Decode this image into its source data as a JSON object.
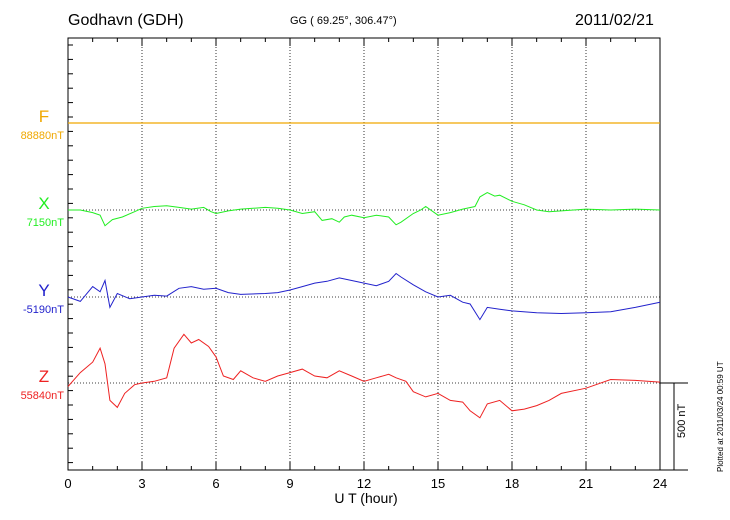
{
  "header": {
    "station": "Godhavn (GDH)",
    "coords": "GG ( 69.25°, 306.47°)",
    "date": "2011/02/21"
  },
  "colors": {
    "F": "#f0a800",
    "X": "#22ee22",
    "Y": "#2222cc",
    "Z": "#ee2222"
  },
  "footer": {
    "scale": "500 nT",
    "plotted": "Plotted at 2011/03/24 00:59 UT"
  },
  "chart_data": {
    "type": "line",
    "xlabel": "U T (hour)",
    "xlim": [
      0,
      24
    ],
    "xticks": [
      "0",
      "3",
      "6",
      "9",
      "12",
      "15",
      "18",
      "21",
      "24"
    ],
    "scale_bar_nT": 500,
    "series": [
      {
        "name": "F",
        "baseline": "88880nT",
        "x": [
          0,
          24
        ],
        "y": [
          0,
          0
        ]
      },
      {
        "name": "X",
        "baseline": "7150nT",
        "x": [
          0,
          0.5,
          1,
          1.3,
          1.5,
          1.8,
          2.2,
          2.7,
          3,
          3.5,
          4,
          4.5,
          5,
          5.5,
          5.8,
          6,
          6.5,
          7,
          7.5,
          8,
          8.5,
          9,
          9.5,
          10,
          10.3,
          10.7,
          11,
          11.2,
          11.5,
          12,
          12.5,
          13,
          13.3,
          13.5,
          14,
          14.3,
          14.5,
          15,
          15.5,
          16,
          16.5,
          16.7,
          17,
          17.3,
          17.5,
          18,
          18.5,
          19,
          19.5,
          20,
          21,
          22,
          23,
          24
        ],
        "y": [
          0,
          0,
          -15,
          -30,
          -90,
          -55,
          -40,
          -10,
          10,
          20,
          25,
          15,
          5,
          15,
          -10,
          -20,
          -5,
          5,
          10,
          15,
          10,
          0,
          -20,
          -10,
          -60,
          -50,
          -70,
          -40,
          -30,
          -45,
          -30,
          -40,
          -85,
          -70,
          -20,
          0,
          20,
          -30,
          -15,
          5,
          20,
          75,
          100,
          80,
          85,
          50,
          30,
          0,
          -10,
          -5,
          5,
          0,
          5,
          0
        ]
      },
      {
        "name": "Y",
        "baseline": "-5190nT",
        "x": [
          0,
          0.5,
          1,
          1.3,
          1.5,
          1.7,
          2,
          2.5,
          3,
          3.5,
          4,
          4.5,
          5,
          5.5,
          6,
          6.5,
          7,
          8,
          8.5,
          9,
          9.5,
          10,
          10.5,
          11,
          11.5,
          12,
          12.5,
          13,
          13.3,
          13.5,
          14,
          14.5,
          15,
          15.5,
          16,
          16.3,
          16.7,
          17,
          17.5,
          18,
          19,
          20,
          21,
          22,
          23,
          24
        ],
        "y": [
          0,
          -25,
          60,
          30,
          95,
          -60,
          20,
          -10,
          0,
          10,
          5,
          50,
          60,
          45,
          50,
          25,
          15,
          20,
          25,
          40,
          60,
          80,
          90,
          110,
          95,
          80,
          65,
          90,
          135,
          115,
          70,
          30,
          0,
          10,
          -30,
          -40,
          -130,
          -60,
          -70,
          -80,
          -90,
          -95,
          -90,
          -85,
          -60,
          -30
        ]
      },
      {
        "name": "Z",
        "baseline": "55840nT",
        "x": [
          0,
          0.5,
          1,
          1.3,
          1.5,
          1.7,
          2,
          2.3,
          2.7,
          3,
          3.5,
          4,
          4.3,
          4.7,
          5,
          5.3,
          5.7,
          6,
          6.3,
          6.7,
          7,
          7.5,
          8,
          8.5,
          9,
          9.5,
          10,
          10.5,
          11,
          11.5,
          12,
          12.5,
          13,
          13.3,
          13.7,
          14,
          14.5,
          15,
          15.5,
          16,
          16.3,
          16.7,
          17,
          17.5,
          18,
          18.5,
          19,
          19.5,
          20,
          21,
          22,
          23,
          24
        ],
        "y": [
          -20,
          60,
          120,
          200,
          110,
          -100,
          -140,
          -60,
          -10,
          0,
          10,
          30,
          200,
          280,
          230,
          250,
          210,
          150,
          40,
          20,
          70,
          30,
          10,
          40,
          60,
          80,
          40,
          30,
          70,
          40,
          10,
          30,
          50,
          30,
          10,
          -50,
          -80,
          -60,
          -100,
          -110,
          -160,
          -200,
          -120,
          -100,
          -160,
          -150,
          -130,
          -100,
          -60,
          -30,
          20,
          15,
          5
        ]
      }
    ]
  }
}
